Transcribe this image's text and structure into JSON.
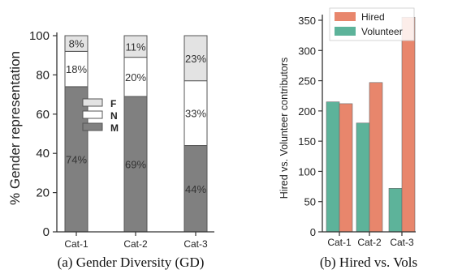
{
  "chart_data": [
    {
      "type": "bar",
      "stacked": true,
      "title": "",
      "caption": "(a) Gender Diversity (GD)",
      "ylabel": "% Gender representation",
      "xlabel": "",
      "ylim": [
        0,
        100
      ],
      "yticks": [
        0,
        20,
        40,
        60,
        80,
        100
      ],
      "categories": [
        "Cat-1",
        "Cat-2",
        "Cat-3"
      ],
      "series": [
        {
          "name": "M",
          "values": [
            74,
            69,
            44
          ],
          "labels": [
            "74%",
            "69%",
            "44%"
          ],
          "color": "#808080"
        },
        {
          "name": "N",
          "values": [
            18,
            20,
            33
          ],
          "labels": [
            "18%",
            "20%",
            "33%"
          ],
          "color": "#ffffff"
        },
        {
          "name": "F",
          "values": [
            8,
            11,
            23
          ],
          "labels": [
            "8%",
            "11%",
            "23%"
          ],
          "color": "#e3e3e3"
        }
      ],
      "legend": {
        "position": "center-left",
        "order": [
          "F",
          "N",
          "M"
        ]
      },
      "grid": false
    },
    {
      "type": "bar",
      "title": "",
      "caption": "(b) Hired vs. Vols",
      "ylabel": "Hired vs. Volunteer contributors",
      "xlabel": "",
      "ylim": [
        0,
        350
      ],
      "yticks": [
        0,
        50,
        100,
        150,
        200,
        250,
        300,
        350
      ],
      "categories": [
        "Cat-1",
        "Cat-2",
        "Cat-3"
      ],
      "series": [
        {
          "name": "Volunteer",
          "values": [
            215,
            180,
            72
          ],
          "color": "#5db39a"
        },
        {
          "name": "Hired",
          "values": [
            212,
            247,
            355
          ],
          "color": "#e8866c"
        }
      ],
      "legend": {
        "position": "top-right",
        "order": [
          "Hired",
          "Volunteer"
        ]
      },
      "grid": false
    }
  ]
}
